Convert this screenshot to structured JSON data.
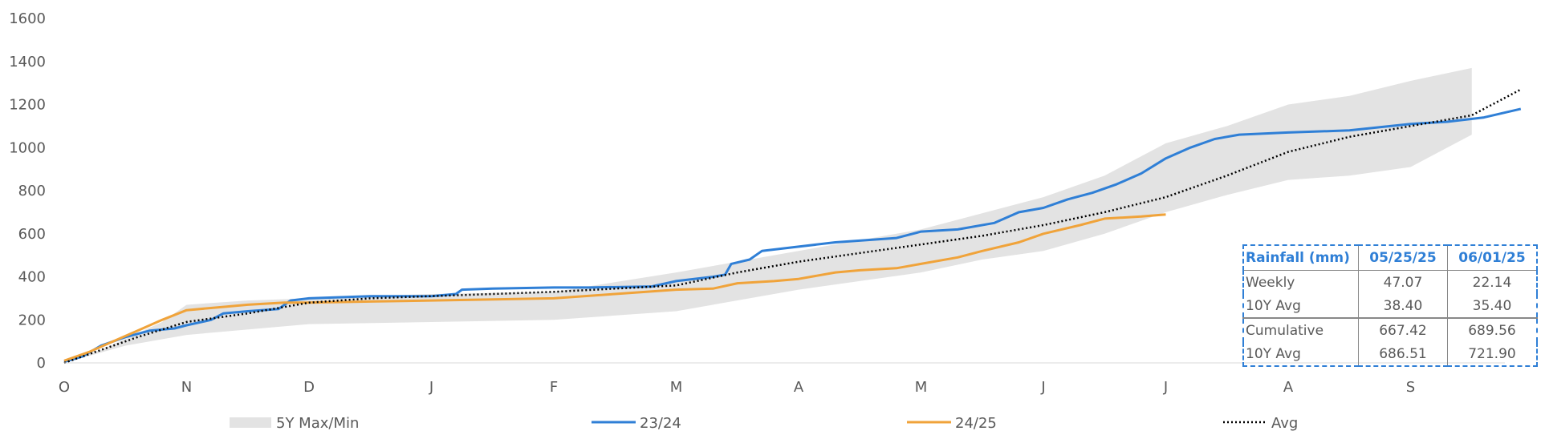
{
  "chart_data": {
    "type": "line",
    "title": "",
    "xlabel": "",
    "ylabel": "",
    "x_ticks": [
      "O",
      "N",
      "D",
      "J",
      "F",
      "M",
      "A",
      "M",
      "J",
      "J",
      "A",
      "S"
    ],
    "y_ticks": [
      "0",
      "200",
      "400",
      "600",
      "800",
      "1000",
      "1200",
      "1400",
      "1600"
    ],
    "ylim": [
      0,
      1600
    ],
    "grid": false,
    "legend_position": "bottom",
    "band": {
      "name": "5Y Max/Min",
      "color": "#e3e3e3",
      "upper": [
        [
          0,
          5
        ],
        [
          0.3,
          60
        ],
        [
          0.8,
          190
        ],
        [
          1,
          270
        ],
        [
          1.5,
          290
        ],
        [
          2,
          300
        ],
        [
          3,
          320
        ],
        [
          4,
          330
        ],
        [
          5,
          420
        ],
        [
          6,
          520
        ],
        [
          7,
          620
        ],
        [
          8,
          770
        ],
        [
          8.5,
          870
        ],
        [
          9,
          1020
        ],
        [
          9.5,
          1100
        ],
        [
          10,
          1200
        ],
        [
          10.5,
          1240
        ],
        [
          11,
          1310
        ],
        [
          11.5,
          1370
        ]
      ],
      "lower": [
        [
          0,
          0
        ],
        [
          0.5,
          80
        ],
        [
          1,
          130
        ],
        [
          2,
          180
        ],
        [
          3,
          190
        ],
        [
          4,
          200
        ],
        [
          5,
          240
        ],
        [
          6,
          340
        ],
        [
          7,
          420
        ],
        [
          7.5,
          480
        ],
        [
          8,
          520
        ],
        [
          8.5,
          600
        ],
        [
          9,
          700
        ],
        [
          9.5,
          780
        ],
        [
          10,
          850
        ],
        [
          10.5,
          870
        ],
        [
          11,
          910
        ],
        [
          11.5,
          1060
        ]
      ]
    },
    "series": [
      {
        "name": "23/24",
        "color": "#2f7fd6",
        "style": "solid",
        "points": [
          [
            0,
            5
          ],
          [
            0.15,
            30
          ],
          [
            0.3,
            80
          ],
          [
            0.5,
            120
          ],
          [
            0.7,
            150
          ],
          [
            0.9,
            160
          ],
          [
            1,
            175
          ],
          [
            1.2,
            200
          ],
          [
            1.3,
            230
          ],
          [
            1.5,
            240
          ],
          [
            1.75,
            250
          ],
          [
            1.85,
            290
          ],
          [
            2,
            300
          ],
          [
            2.5,
            310
          ],
          [
            3,
            310
          ],
          [
            3.2,
            320
          ],
          [
            3.25,
            340
          ],
          [
            3.5,
            345
          ],
          [
            4,
            350
          ],
          [
            4.3,
            350
          ],
          [
            4.8,
            355
          ],
          [
            5,
            380
          ],
          [
            5.3,
            400
          ],
          [
            5.4,
            410
          ],
          [
            5.45,
            460
          ],
          [
            5.6,
            480
          ],
          [
            5.7,
            520
          ],
          [
            6,
            540
          ],
          [
            6.3,
            560
          ],
          [
            6.8,
            580
          ],
          [
            7,
            610
          ],
          [
            7.3,
            620
          ],
          [
            7.6,
            650
          ],
          [
            7.8,
            700
          ],
          [
            8,
            720
          ],
          [
            8.2,
            760
          ],
          [
            8.4,
            790
          ],
          [
            8.6,
            830
          ],
          [
            8.8,
            880
          ],
          [
            9,
            950
          ],
          [
            9.2,
            1000
          ],
          [
            9.4,
            1040
          ],
          [
            9.6,
            1060
          ],
          [
            10,
            1070
          ],
          [
            10.5,
            1080
          ],
          [
            11,
            1110
          ],
          [
            11.3,
            1120
          ],
          [
            11.6,
            1140
          ],
          [
            11.9,
            1180
          ]
        ]
      },
      {
        "name": "24/25",
        "color": "#f0a33a",
        "style": "solid",
        "points": [
          [
            0,
            10
          ],
          [
            0.2,
            50
          ],
          [
            0.4,
            100
          ],
          [
            0.6,
            150
          ],
          [
            0.8,
            200
          ],
          [
            1,
            245
          ],
          [
            1.3,
            260
          ],
          [
            1.5,
            270
          ],
          [
            1.8,
            280
          ],
          [
            2,
            280
          ],
          [
            2.5,
            285
          ],
          [
            3,
            290
          ],
          [
            4,
            300
          ],
          [
            4.5,
            320
          ],
          [
            5,
            340
          ],
          [
            5.3,
            345
          ],
          [
            5.5,
            370
          ],
          [
            5.8,
            380
          ],
          [
            6,
            390
          ],
          [
            6.3,
            420
          ],
          [
            6.5,
            430
          ],
          [
            6.8,
            440
          ],
          [
            7,
            460
          ],
          [
            7.3,
            490
          ],
          [
            7.5,
            520
          ],
          [
            7.8,
            560
          ],
          [
            8,
            600
          ],
          [
            8.3,
            640
          ],
          [
            8.5,
            670
          ],
          [
            8.8,
            680
          ],
          [
            9,
            689.56
          ]
        ]
      },
      {
        "name": "Avg",
        "color": "#000000",
        "style": "dotted",
        "points": [
          [
            0,
            0
          ],
          [
            0.3,
            60
          ],
          [
            0.6,
            120
          ],
          [
            1,
            190
          ],
          [
            1.5,
            230
          ],
          [
            2,
            280
          ],
          [
            2.5,
            300
          ],
          [
            3,
            310
          ],
          [
            4,
            330
          ],
          [
            5,
            360
          ],
          [
            5.5,
            420
          ],
          [
            6,
            470
          ],
          [
            6.5,
            510
          ],
          [
            7,
            550
          ],
          [
            7.5,
            590
          ],
          [
            8,
            640
          ],
          [
            8.5,
            700
          ],
          [
            9,
            770
          ],
          [
            9.5,
            870
          ],
          [
            10,
            980
          ],
          [
            10.5,
            1050
          ],
          [
            11,
            1100
          ],
          [
            11.5,
            1150
          ],
          [
            11.9,
            1270
          ]
        ]
      }
    ]
  },
  "summary_table": {
    "headers": [
      "Rainfall (mm)",
      "05/25/25",
      "06/01/25"
    ],
    "rows": [
      [
        "Weekly",
        "47.07",
        "22.14"
      ],
      [
        "10Y Avg",
        "38.40",
        "35.40"
      ],
      [
        "Cumulative",
        "667.42",
        "689.56"
      ],
      [
        "10Y Avg",
        "686.51",
        "721.90"
      ]
    ]
  }
}
